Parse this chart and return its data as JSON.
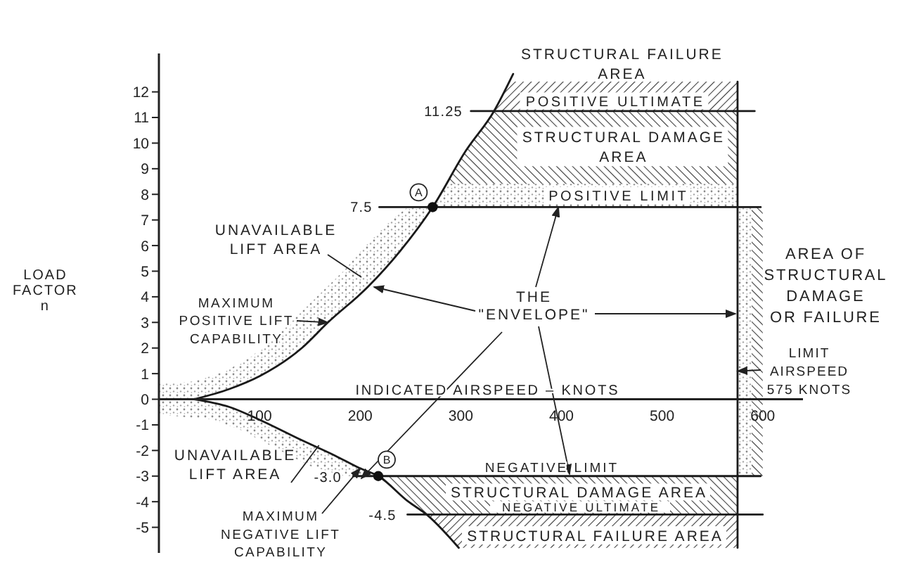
{
  "chart_data": {
    "type": "line",
    "xlabel": "INDICATED AIRSPEED – KNOTS",
    "ylabel": "LOAD FACTOR n",
    "xlim": [
      0,
      640
    ],
    "ylim": [
      -6,
      13.5
    ],
    "xticks": [
      100,
      200,
      300,
      400,
      500,
      600
    ],
    "yticks": [
      -5,
      -4,
      -3,
      -2,
      -1,
      0,
      1,
      2,
      3,
      4,
      5,
      6,
      7,
      8,
      9,
      10,
      11,
      12
    ],
    "series": [
      {
        "color": "#1a1a1a",
        "x": [
          35,
          70,
          100,
          142,
          168,
          208,
          240,
          272,
          305,
          333,
          352
        ],
        "values": [
          0,
          0.4,
          0.9,
          2.0,
          3.0,
          4.4,
          5.8,
          7.5,
          9.7,
          11.25,
          12.7
        ]
      },
      {
        "color": "#1a1a1a",
        "x": [
          35,
          70,
          100,
          142,
          175,
          200,
          218,
          248,
          266,
          298
        ],
        "values": [
          0,
          -0.3,
          -0.8,
          -1.6,
          -2.2,
          -2.7,
          -3.0,
          -4.0,
          -4.5,
          -5.8
        ]
      },
      {
        "color": "#1a1a1a",
        "x": [
          219,
          598
        ],
        "values": [
          7.5,
          7.5
        ]
      },
      {
        "color": "#1a1a1a",
        "x": [
          310,
          592
        ],
        "values": [
          11.25,
          11.25
        ]
      },
      {
        "color": "#1a1a1a",
        "x": [
          193,
          598
        ],
        "values": [
          -3.0,
          -3.0
        ]
      },
      {
        "color": "#1a1a1a",
        "x": [
          247,
          600
        ],
        "values": [
          -4.5,
          -4.5
        ]
      },
      {
        "color": "#1a1a1a",
        "x": [
          575,
          575
        ],
        "values": [
          12.4,
          -5.8
        ]
      },
      {
        "type": "scatter",
        "color": "#111111",
        "marker": "circle",
        "x": [
          272,
          218
        ],
        "values": [
          7.5,
          -3.0
        ]
      }
    ],
    "annotations": [
      "STRUCTURAL FAILURE\nAREA",
      "POSITIVE ULTIMATE",
      "11.25",
      "STRUCTURAL DAMAGE\nAREA",
      "POSITIVE LIMIT",
      "7.5",
      "A",
      "UNAVAILABLE\nLIFT AREA",
      {
        "text": "MAXIMUM\nPOSITIVE LIFT\nCAPABILITY",
        "x": 168,
        "y": 3.0
      },
      {
        "text": "THE\n\"ENVELOPE\"",
        "x": 397,
        "y": 7.5
      },
      "AREA OF\nSTRUCTURAL\nDAMAGE\nOR FAILURE",
      {
        "text": "LIMIT\nAIRSPEED\n575 KNOTS",
        "x": 575,
        "y": 1.1
      },
      {
        "text": "UNAVAILABLE\nLIFT AREA",
        "x": 159,
        "y": -1.8
      },
      "B",
      "-3.0",
      "NEGATIVE LIMIT",
      "STRUCTURAL DAMAGE AREA",
      {
        "text": "MAXIMUM\nNEGATIVE LIFT\nCAPABILITY",
        "x": 200,
        "y": -2.7
      },
      "-4.5",
      "NEGATIVE ULTIMATE",
      "STRUCTURAL FAILURE AREA"
    ]
  }
}
